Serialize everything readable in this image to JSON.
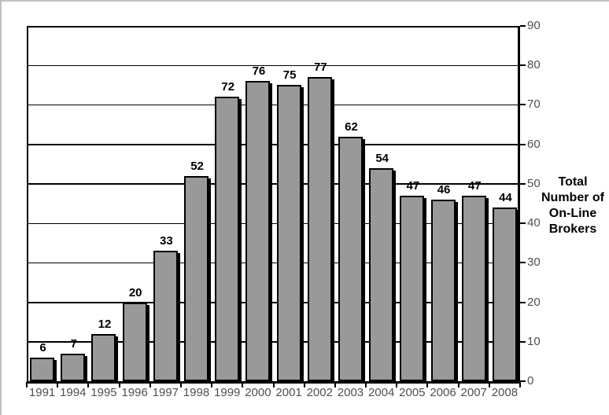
{
  "chart_data": {
    "type": "bar",
    "categories": [
      "1991",
      "1994",
      "1995",
      "1996",
      "1997",
      "1998",
      "1999",
      "2000",
      "2001",
      "2002",
      "2003",
      "2004",
      "2005",
      "2006",
      "2007",
      "2008"
    ],
    "values": [
      6,
      7,
      12,
      20,
      33,
      52,
      72,
      76,
      75,
      77,
      62,
      54,
      47,
      46,
      47,
      44
    ],
    "title": "",
    "xlabel": "",
    "ylabel": "Total Number of On-Line Brokers",
    "ylabel_display": "Total\nNumber of\nOn-Line\nBrokers",
    "ylim": [
      0,
      90
    ],
    "yticks": [
      0,
      10,
      20,
      30,
      40,
      50,
      60,
      70,
      80,
      90
    ],
    "grid": true,
    "legend": "none",
    "y_axis_side": "right",
    "data_labels": true,
    "colors": {
      "bar_fill": "#999999",
      "bar_border": "#000000",
      "shadow": "#000000",
      "gridline": "#000000",
      "axis_line": "#000000",
      "tick_label": "#4f4f4f",
      "data_label": "#000000",
      "background": "#ffffff",
      "frame_edge": "#c0c0c0"
    }
  }
}
